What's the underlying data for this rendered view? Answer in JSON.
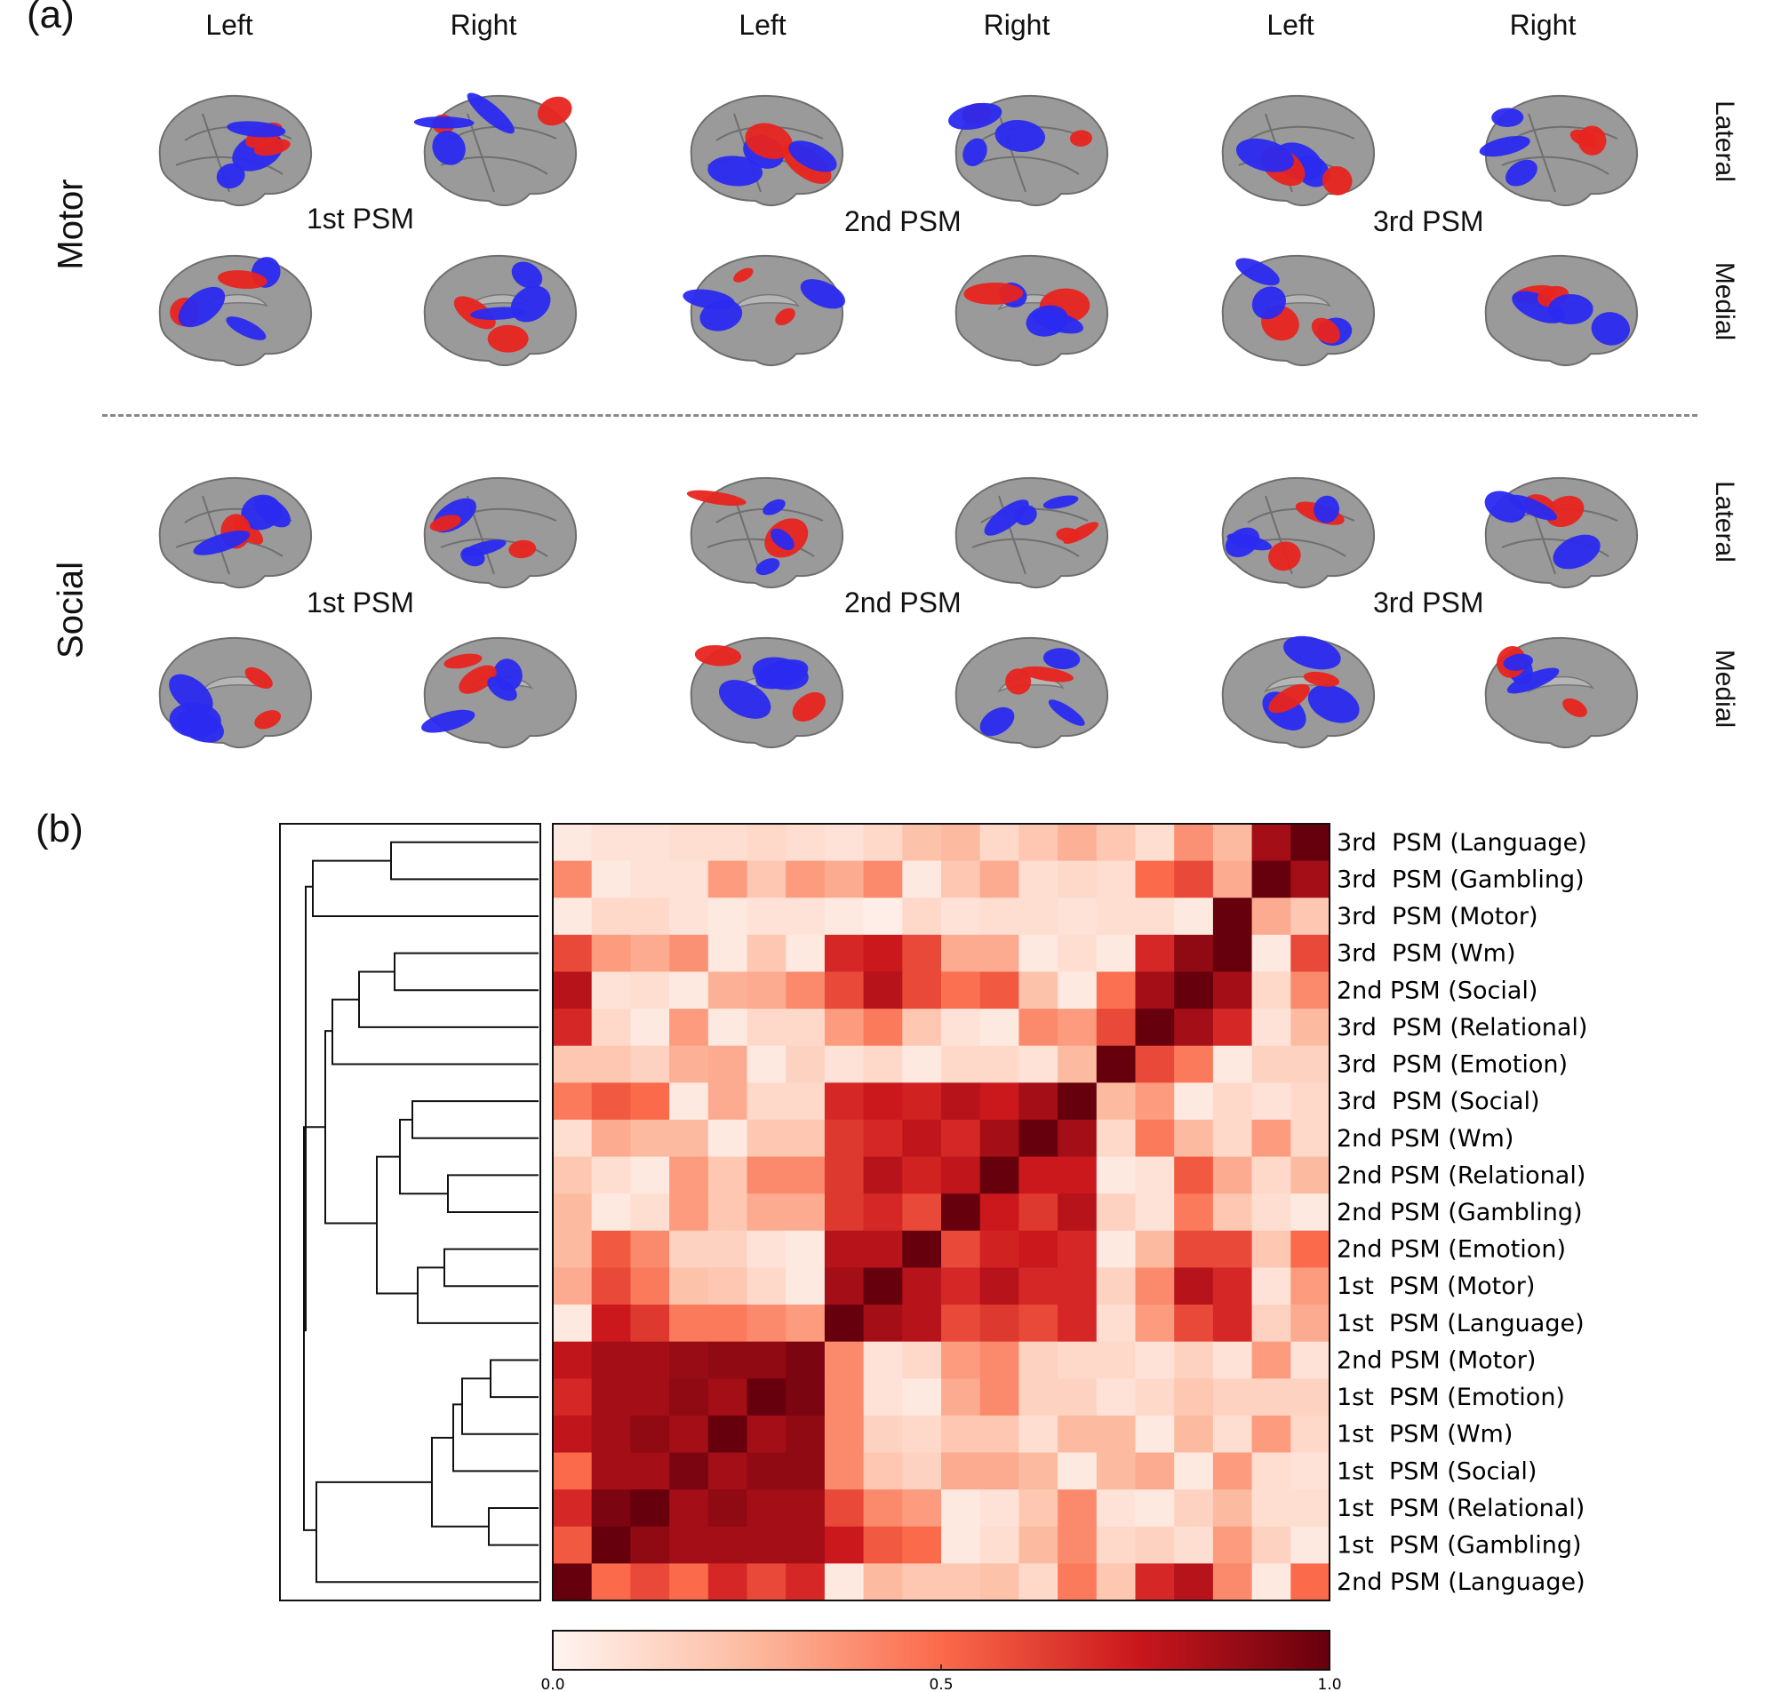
{
  "panel_a": {
    "label": "(a)",
    "column_labels": [
      "Left",
      "Right",
      "Left",
      "Right",
      "Left",
      "Right"
    ],
    "row_labels": [
      "Motor",
      "Social"
    ],
    "psm_labels": [
      "1st PSM",
      "2nd PSM",
      "3rd PSM"
    ],
    "view_labels": [
      "Lateral",
      "Medial"
    ],
    "colors": {
      "positive": "#e8241f",
      "negative": "#2a2af0",
      "cortex": "#9a9a9a"
    }
  },
  "panel_b": {
    "label": "(b)",
    "colorbar": {
      "ticks": [
        "0.0",
        "0.5",
        "1.0"
      ],
      "colormap": "Reds",
      "min": 0,
      "max": 1
    }
  },
  "chart_data": {
    "type": "heatmap",
    "title": "",
    "row_labels": [
      "3rd  PSM (Language)",
      "3rd  PSM (Gambling)",
      "3rd  PSM (Motor)",
      "3rd  PSM (Wm)",
      "2nd PSM (Social)",
      "3rd  PSM (Relational)",
      "3rd  PSM (Emotion)",
      "3rd  PSM (Social)",
      "2nd PSM (Wm)",
      "2nd PSM (Relational)",
      "2nd PSM (Gambling)",
      "2nd PSM (Emotion)",
      "1st  PSM (Motor)",
      "1st  PSM (Language)",
      "2nd PSM (Motor)",
      "1st  PSM (Emotion)",
      "1st  PSM (Wm)",
      "1st  PSM (Social)",
      "1st  PSM (Relational)",
      "1st  PSM (Gambling)",
      "2nd PSM (Language)"
    ],
    "values": [
      [
        0.05,
        0.08,
        0.08,
        0.1,
        0.1,
        0.12,
        0.1,
        0.08,
        0.12,
        0.22,
        0.25,
        0.12,
        0.2,
        0.28,
        0.2,
        0.1,
        0.38,
        0.25,
        0.85,
        1.0
      ],
      [
        0.4,
        0.05,
        0.08,
        0.08,
        0.35,
        0.2,
        0.35,
        0.3,
        0.4,
        0.05,
        0.2,
        0.3,
        0.1,
        0.12,
        0.1,
        0.5,
        0.6,
        0.3,
        1.0,
        0.85
      ],
      [
        0.05,
        0.12,
        0.12,
        0.08,
        0.05,
        0.08,
        0.08,
        0.05,
        0.03,
        0.12,
        0.08,
        0.1,
        0.1,
        0.08,
        0.1,
        0.1,
        0.05,
        1.0,
        0.3,
        0.2
      ],
      [
        0.6,
        0.35,
        0.3,
        0.38,
        0.05,
        0.2,
        0.05,
        0.7,
        0.75,
        0.6,
        0.3,
        0.3,
        0.05,
        0.1,
        0.05,
        0.7,
        0.9,
        1.0,
        0.05,
        0.6
      ],
      [
        0.8,
        0.08,
        0.1,
        0.05,
        0.28,
        0.3,
        0.4,
        0.6,
        0.8,
        0.6,
        0.48,
        0.55,
        0.22,
        0.05,
        0.48,
        0.85,
        1.0,
        0.85,
        0.12,
        0.4
      ],
      [
        0.7,
        0.12,
        0.05,
        0.35,
        0.05,
        0.12,
        0.12,
        0.35,
        0.45,
        0.2,
        0.08,
        0.05,
        0.4,
        0.35,
        0.6,
        1.0,
        0.85,
        0.7,
        0.08,
        0.25
      ],
      [
        0.2,
        0.2,
        0.15,
        0.28,
        0.3,
        0.05,
        0.15,
        0.08,
        0.12,
        0.05,
        0.12,
        0.12,
        0.08,
        0.25,
        1.0,
        0.6,
        0.45,
        0.05,
        0.15,
        0.15
      ],
      [
        0.45,
        0.55,
        0.5,
        0.05,
        0.3,
        0.12,
        0.12,
        0.7,
        0.75,
        0.72,
        0.8,
        0.75,
        0.85,
        1.0,
        0.25,
        0.35,
        0.05,
        0.12,
        0.08,
        0.12
      ],
      [
        0.1,
        0.3,
        0.25,
        0.25,
        0.05,
        0.2,
        0.2,
        0.65,
        0.7,
        0.78,
        0.7,
        0.85,
        1.0,
        0.85,
        0.12,
        0.45,
        0.25,
        0.12,
        0.35,
        0.12
      ],
      [
        0.2,
        0.1,
        0.05,
        0.35,
        0.2,
        0.4,
        0.4,
        0.65,
        0.8,
        0.72,
        0.78,
        1.0,
        0.75,
        0.75,
        0.05,
        0.08,
        0.55,
        0.3,
        0.12,
        0.25
      ],
      [
        0.25,
        0.05,
        0.1,
        0.35,
        0.2,
        0.3,
        0.3,
        0.65,
        0.7,
        0.6,
        1.0,
        0.75,
        0.65,
        0.8,
        0.15,
        0.08,
        0.45,
        0.2,
        0.1,
        0.05
      ],
      [
        0.25,
        0.55,
        0.4,
        0.15,
        0.15,
        0.08,
        0.05,
        0.8,
        0.8,
        1.0,
        0.6,
        0.72,
        0.75,
        0.7,
        0.05,
        0.25,
        0.6,
        0.6,
        0.2,
        0.5
      ],
      [
        0.3,
        0.6,
        0.45,
        0.22,
        0.2,
        0.12,
        0.05,
        0.85,
        1.0,
        0.8,
        0.7,
        0.8,
        0.7,
        0.7,
        0.15,
        0.4,
        0.8,
        0.7,
        0.08,
        0.35
      ],
      [
        0.05,
        0.75,
        0.65,
        0.45,
        0.45,
        0.4,
        0.35,
        1.0,
        0.85,
        0.8,
        0.6,
        0.65,
        0.6,
        0.7,
        0.1,
        0.35,
        0.6,
        0.7,
        0.15,
        0.3
      ],
      [
        0.78,
        0.85,
        0.85,
        0.88,
        0.9,
        0.9,
        0.95,
        0.4,
        0.08,
        0.12,
        0.35,
        0.4,
        0.15,
        0.12,
        0.12,
        0.08,
        0.15,
        0.08,
        0.35,
        0.08
      ],
      [
        0.7,
        0.85,
        0.85,
        0.9,
        0.85,
        1.0,
        0.95,
        0.4,
        0.08,
        0.05,
        0.3,
        0.4,
        0.15,
        0.15,
        0.08,
        0.12,
        0.2,
        0.15,
        0.15,
        0.15
      ],
      [
        0.78,
        0.85,
        0.9,
        0.85,
        1.0,
        0.85,
        0.9,
        0.4,
        0.15,
        0.12,
        0.2,
        0.2,
        0.1,
        0.25,
        0.25,
        0.05,
        0.25,
        0.1,
        0.35,
        0.12
      ],
      [
        0.5,
        0.85,
        0.85,
        0.95,
        0.85,
        0.9,
        0.9,
        0.4,
        0.2,
        0.15,
        0.3,
        0.3,
        0.25,
        0.05,
        0.25,
        0.3,
        0.05,
        0.35,
        0.1,
        0.08
      ],
      [
        0.7,
        0.95,
        1.0,
        0.85,
        0.9,
        0.85,
        0.85,
        0.6,
        0.4,
        0.35,
        0.05,
        0.08,
        0.2,
        0.4,
        0.08,
        0.05,
        0.15,
        0.25,
        0.1,
        0.1
      ],
      [
        0.55,
        1.0,
        0.9,
        0.85,
        0.85,
        0.85,
        0.85,
        0.75,
        0.55,
        0.5,
        0.05,
        0.1,
        0.25,
        0.4,
        0.12,
        0.15,
        0.1,
        0.35,
        0.15,
        0.05
      ],
      [
        1.0,
        0.5,
        0.6,
        0.5,
        0.7,
        0.6,
        0.7,
        0.05,
        0.25,
        0.2,
        0.2,
        0.22,
        0.12,
        0.45,
        0.2,
        0.7,
        0.8,
        0.4,
        0.05,
        0.5
      ]
    ],
    "vmin": 0,
    "vmax": 1,
    "colorbar_ticks": [
      0.0,
      0.5,
      1.0
    ],
    "dendrogram": "left",
    "legend": "colorbar-bottom"
  }
}
